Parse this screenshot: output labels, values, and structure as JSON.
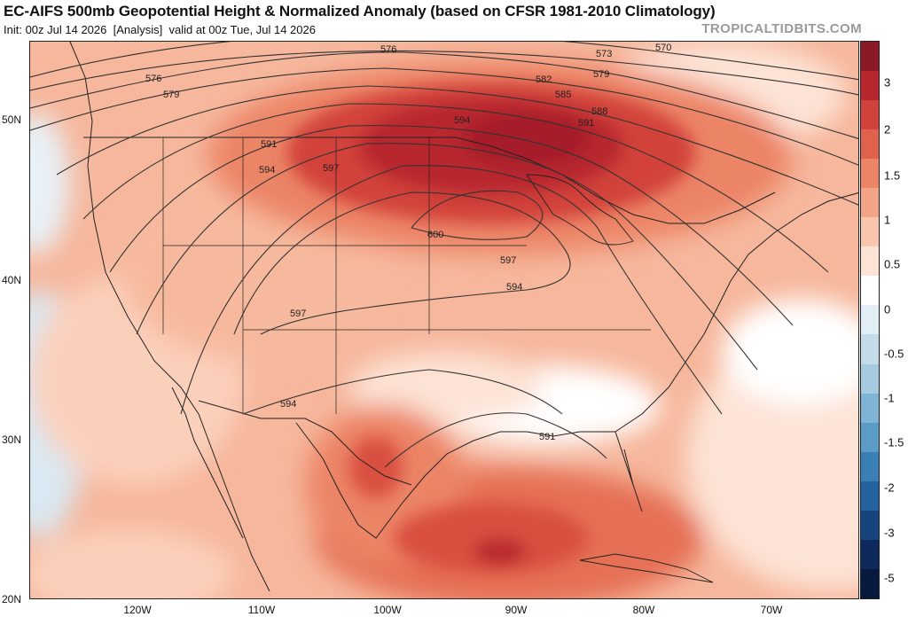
{
  "header": {
    "title": "EC-AIFS 500mb Geopotential Height & Normalized Anomaly (based on CFSR 1981-2010 Climatology)",
    "init": "Init: 00z Jul 14 2026",
    "analysis": "[Analysis]",
    "valid": "valid at 00z Tue, Jul 14 2026",
    "brand": "TROPICALTIDBITS.COM"
  },
  "axes": {
    "lat_labels": [
      "50N",
      "40N",
      "30N",
      "20N"
    ],
    "lon_labels": [
      "120W",
      "110W",
      "100W",
      "90W",
      "80W",
      "70W"
    ]
  },
  "colorbar": {
    "labels": [
      "3",
      "2",
      "1.5",
      "1",
      "0.5",
      "0",
      "-0.5",
      "-1",
      "-1.5",
      "-2",
      "-3",
      "-5"
    ],
    "colors": [
      "#8b1a26",
      "#b8262e",
      "#d2423b",
      "#e0624d",
      "#ec8466",
      "#f4a486",
      "#f9c6ad",
      "#fde3d6",
      "#ffffff",
      "#e2eef6",
      "#c4dcea",
      "#a6cae0",
      "#7fb4d4",
      "#5a9cc6",
      "#3a80b6",
      "#2562a0",
      "#17447f",
      "#0e2a5c",
      "#071a3d"
    ]
  },
  "contours": {
    "labels": [
      "576",
      "576",
      "573",
      "570",
      "579",
      "582",
      "579",
      "585",
      "588",
      "591",
      "594",
      "591",
      "594",
      "597",
      "600",
      "597",
      "594",
      "597",
      "594",
      "591"
    ]
  }
}
